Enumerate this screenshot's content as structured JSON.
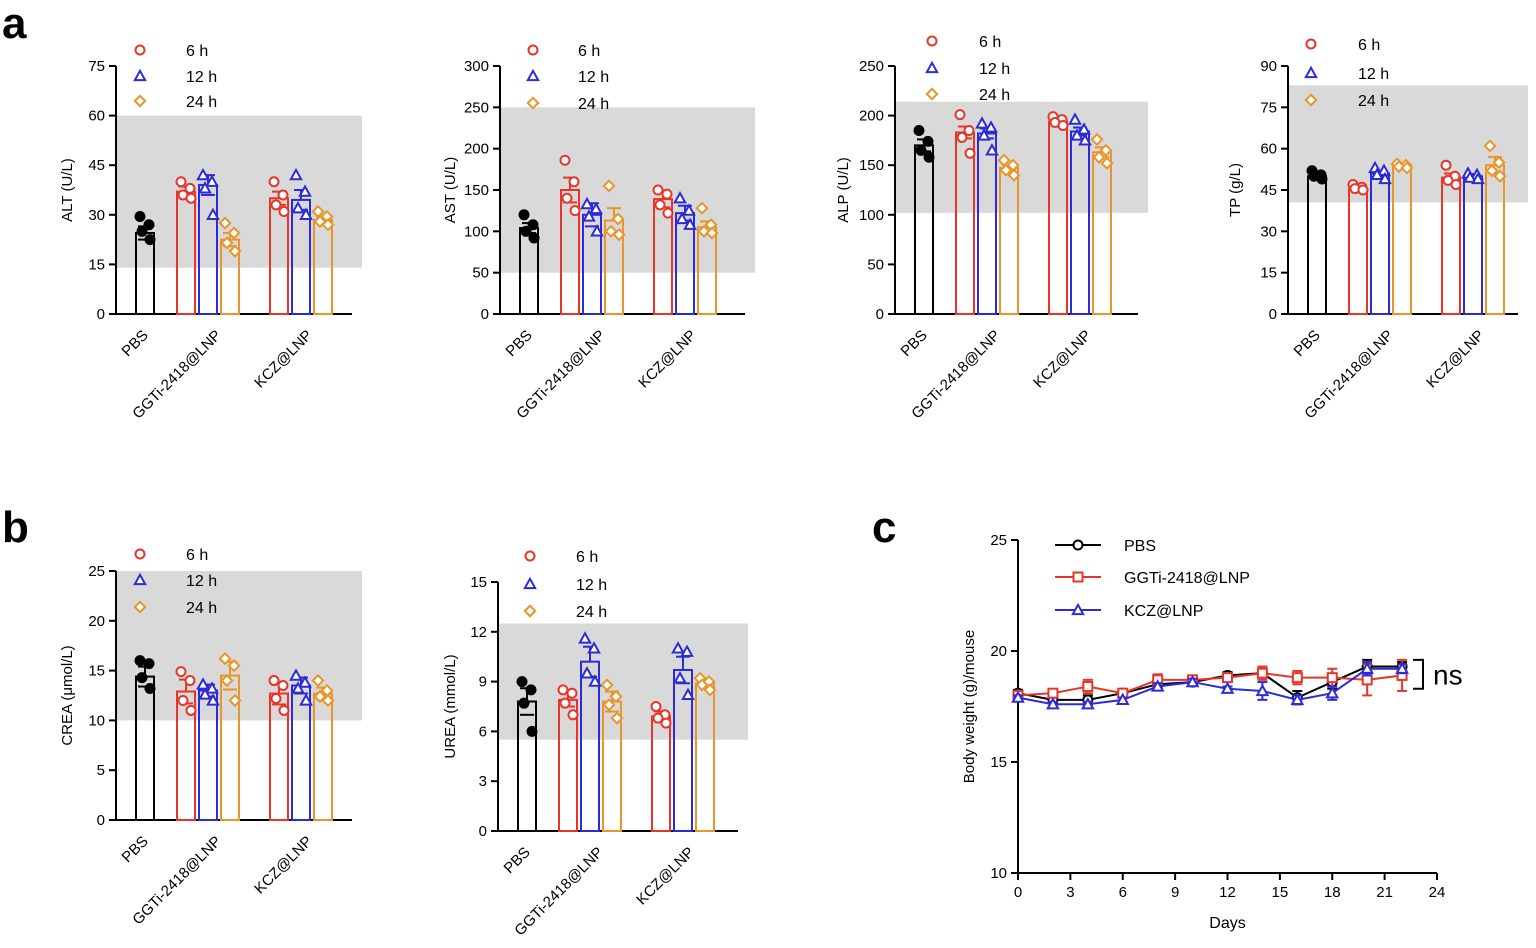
{
  "panel_labels": {
    "a": "a",
    "b": "b",
    "c": "c"
  },
  "colors": {
    "pbs": "#000000",
    "h6": "#e8352a",
    "h12": "#2b2bd9",
    "h24": "#e8952a",
    "reference_band": "#d9d9d9",
    "ggti_line": "#e8352a",
    "kcz_line": "#2b2bd9"
  },
  "chart_data": [
    {
      "id": "alt",
      "panel": "a",
      "type": "bar",
      "ylabel": "ALT (U/L)",
      "ylim": [
        0,
        75
      ],
      "yticks": [
        0,
        15,
        30,
        45,
        60,
        75
      ],
      "reference_range": [
        14,
        60
      ],
      "categories": [
        "PBS",
        "GGTi-2418@LNP",
        "KCZ@LNP"
      ],
      "legend": [
        "6 h",
        "12 h",
        "24 h"
      ],
      "pbs": {
        "mean": 24.5,
        "sem": 2,
        "points": [
          29.5,
          27,
          25,
          22.5
        ]
      },
      "groups": [
        {
          "category": "GGTi-2418@LNP",
          "bars": [
            {
              "series": "6 h",
              "mean": 37,
              "sem": 1.5,
              "points": [
                40,
                38,
                36,
                35
              ]
            },
            {
              "series": "12 h",
              "mean": 39,
              "sem": 3,
              "points": [
                42,
                40,
                38,
                30
              ]
            },
            {
              "series": "24 h",
              "mean": 22.5,
              "sem": 2,
              "points": [
                27.5,
                24.5,
                21.5,
                19
              ]
            }
          ]
        },
        {
          "category": "KCZ@LNP",
          "bars": [
            {
              "series": "6 h",
              "mean": 35,
              "sem": 2,
              "points": [
                40,
                36,
                33,
                31
              ]
            },
            {
              "series": "12 h",
              "mean": 34.5,
              "sem": 3,
              "points": [
                42,
                37,
                32,
                30
              ]
            },
            {
              "series": "24 h",
              "mean": 28.5,
              "sem": 1,
              "points": [
                31,
                29.5,
                28,
                27
              ]
            }
          ]
        }
      ]
    },
    {
      "id": "ast",
      "panel": "a",
      "type": "bar",
      "ylabel": "AST (U/L)",
      "ylim": [
        0,
        300
      ],
      "yticks": [
        0,
        50,
        100,
        150,
        200,
        250,
        300
      ],
      "reference_range": [
        50,
        250
      ],
      "categories": [
        "PBS",
        "GGTi-2418@LNP",
        "KCZ@LNP"
      ],
      "legend": [
        "6 h",
        "12 h",
        "24 h"
      ],
      "pbs": {
        "mean": 104,
        "sem": 6,
        "points": [
          120,
          108,
          100,
          92
        ]
      },
      "groups": [
        {
          "category": "GGTi-2418@LNP",
          "bars": [
            {
              "series": "6 h",
              "mean": 150,
              "sem": 15,
              "points": [
                186,
                160,
                140,
                125
              ]
            },
            {
              "series": "12 h",
              "mean": 120,
              "sem": 14,
              "points": [
                133,
                127,
                118,
                100
              ]
            },
            {
              "series": "24 h",
              "mean": 113,
              "sem": 15,
              "points": [
                155,
                115,
                100,
                96
              ]
            }
          ]
        },
        {
          "category": "KCZ@LNP",
          "bars": [
            {
              "series": "6 h",
              "mean": 139,
              "sem": 10,
              "points": [
                150,
                145,
                132,
                122
              ]
            },
            {
              "series": "12 h",
              "mean": 122,
              "sem": 9,
              "points": [
                140,
                125,
                115,
                108
              ]
            },
            {
              "series": "24 h",
              "mean": 105,
              "sem": 7,
              "points": [
                128,
                108,
                100,
                98
              ]
            }
          ]
        }
      ]
    },
    {
      "id": "alp",
      "panel": "a",
      "type": "bar",
      "ylabel": "ALP (U/L)",
      "ylim": [
        0,
        250
      ],
      "yticks": [
        0,
        50,
        100,
        150,
        200,
        250
      ],
      "reference_range": [
        102,
        214
      ],
      "categories": [
        "PBS",
        "GGTi-2418@LNP",
        "KCZ@LNP"
      ],
      "legend": [
        "6 h",
        "12 h",
        "24 h"
      ],
      "pbs": {
        "mean": 170,
        "sem": 6,
        "points": [
          185,
          174,
          165,
          158
        ]
      },
      "groups": [
        {
          "category": "GGTi-2418@LNP",
          "bars": [
            {
              "series": "6 h",
              "mean": 183,
              "sem": 6,
              "points": [
                201,
                185,
                178,
                162
              ]
            },
            {
              "series": "12 h",
              "mean": 182,
              "sem": 5,
              "points": [
                192,
                188,
                180,
                165
              ]
            },
            {
              "series": "24 h",
              "mean": 147,
              "sem": 3,
              "points": [
                155,
                150,
                145,
                140
              ]
            }
          ]
        },
        {
          "category": "KCZ@LNP",
          "bars": [
            {
              "series": "6 h",
              "mean": 194,
              "sem": 2,
              "points": [
                199,
                196,
                193,
                190
              ]
            },
            {
              "series": "12 h",
              "mean": 184,
              "sem": 4,
              "points": [
                196,
                186,
                180,
                175
              ]
            },
            {
              "series": "24 h",
              "mean": 163,
              "sem": 5,
              "points": [
                176,
                165,
                158,
                152
              ]
            }
          ]
        }
      ]
    },
    {
      "id": "tp",
      "panel": "a",
      "type": "bar",
      "ylabel": "TP (g/L)",
      "ylim": [
        0,
        90
      ],
      "yticks": [
        0,
        15,
        30,
        45,
        60,
        75,
        90
      ],
      "reference_range": [
        40.5,
        83
      ],
      "categories": [
        "PBS",
        "GGTi-2418@LNP",
        "KCZ@LNP"
      ],
      "legend": [
        "6 h",
        "12 h",
        "24 h"
      ],
      "pbs": {
        "mean": 50,
        "sem": 1,
        "points": [
          52,
          50.5,
          50,
          49
        ]
      },
      "groups": [
        {
          "category": "GGTi-2418@LNP",
          "bars": [
            {
              "series": "6 h",
              "mean": 45.5,
              "sem": 0.8,
              "points": [
                47,
                46,
                45.5,
                45
              ]
            },
            {
              "series": "12 h",
              "mean": 51,
              "sem": 1,
              "points": [
                53,
                52,
                50.5,
                49
              ]
            },
            {
              "series": "24 h",
              "mean": 53.5,
              "sem": 0.6,
              "points": [
                54.5,
                54,
                53.5,
                53
              ]
            }
          ]
        },
        {
          "category": "KCZ@LNP",
          "bars": [
            {
              "series": "6 h",
              "mean": 49.5,
              "sem": 1.5,
              "points": [
                54,
                50,
                48.5,
                47
              ]
            },
            {
              "series": "12 h",
              "mean": 50,
              "sem": 0.8,
              "points": [
                51,
                50.5,
                49.5,
                49
              ]
            },
            {
              "series": "24 h",
              "mean": 54,
              "sem": 3,
              "points": [
                61,
                55,
                52,
                50
              ]
            }
          ]
        }
      ]
    },
    {
      "id": "crea",
      "panel": "b",
      "type": "bar",
      "ylabel": "CREA (μmol/L)",
      "ylim": [
        0,
        25
      ],
      "yticks": [
        0,
        5,
        10,
        15,
        20,
        25
      ],
      "reference_range": [
        10,
        25
      ],
      "categories": [
        "PBS",
        "GGTi-2418@LNP",
        "KCZ@LNP"
      ],
      "legend": [
        "6 h",
        "12 h",
        "24 h"
      ],
      "pbs": {
        "mean": 14.4,
        "sem": 1,
        "points": [
          16,
          15.7,
          14.3,
          13.2
        ]
      },
      "groups": [
        {
          "category": "GGTi-2418@LNP",
          "bars": [
            {
              "series": "6 h",
              "mean": 12.9,
              "sem": 1.2,
              "points": [
                14.9,
                14,
                12,
                11
              ]
            },
            {
              "series": "12 h",
              "mean": 13,
              "sem": 0.6,
              "points": [
                13.6,
                13.2,
                12.6,
                12
              ]
            },
            {
              "series": "24 h",
              "mean": 14.5,
              "sem": 1.4,
              "points": [
                16.2,
                15.5,
                14,
                12
              ]
            }
          ]
        },
        {
          "category": "KCZ@LNP",
          "bars": [
            {
              "series": "6 h",
              "mean": 12.7,
              "sem": 1.1,
              "points": [
                14,
                13.5,
                12.2,
                11
              ]
            },
            {
              "series": "12 h",
              "mean": 13.5,
              "sem": 0.8,
              "points": [
                14.5,
                13.8,
                13.2,
                12
              ]
            },
            {
              "series": "24 h",
              "mean": 12.7,
              "sem": 0.6,
              "points": [
                14,
                13,
                12.4,
                12
              ]
            }
          ]
        }
      ]
    },
    {
      "id": "urea",
      "panel": "b",
      "type": "bar",
      "ylabel": "UREA (mmol/L)",
      "ylim": [
        0,
        15
      ],
      "yticks": [
        0,
        3,
        6,
        9,
        12,
        15
      ],
      "reference_range": [
        5.5,
        12.5
      ],
      "categories": [
        "PBS",
        "GGTi-2418@LNP",
        "KCZ@LNP"
      ],
      "legend": [
        "6 h",
        "12 h",
        "24 h"
      ],
      "pbs": {
        "mean": 7.8,
        "sem": 0.8,
        "points": [
          9,
          8.5,
          7.7,
          6
        ]
      },
      "groups": [
        {
          "category": "GGTi-2418@LNP",
          "bars": [
            {
              "series": "6 h",
              "mean": 7.9,
              "sem": 0.4,
              "points": [
                8.5,
                8.3,
                7.7,
                7
              ]
            },
            {
              "series": "12 h",
              "mean": 10.2,
              "sem": 0.9,
              "points": [
                11.6,
                11,
                9.5,
                9
              ]
            },
            {
              "series": "24 h",
              "mean": 7.8,
              "sem": 0.6,
              "points": [
                8.8,
                8.1,
                7.6,
                6.8
              ]
            }
          ]
        },
        {
          "category": "KCZ@LNP",
          "bars": [
            {
              "series": "6 h",
              "mean": 6.9,
              "sem": 0.3,
              "points": [
                7.5,
                7,
                6.8,
                6.5
              ]
            },
            {
              "series": "12 h",
              "mean": 9.7,
              "sem": 0.8,
              "points": [
                11,
                10.8,
                9.2,
                8.2
              ]
            },
            {
              "series": "24 h",
              "mean": 8.9,
              "sem": 0.2,
              "points": [
                9.2,
                9,
                8.8,
                8.5
              ]
            }
          ]
        }
      ]
    },
    {
      "id": "bw",
      "panel": "c",
      "type": "line",
      "xlabel": "Days",
      "ylabel": "Body weight (g)/mouse",
      "xlim": [
        0,
        24
      ],
      "xticks": [
        0,
        3,
        6,
        9,
        12,
        15,
        18,
        21,
        24
      ],
      "ylim": [
        10,
        25
      ],
      "yticks": [
        10,
        15,
        20,
        25
      ],
      "x": [
        0,
        2,
        4,
        6,
        8,
        10,
        12,
        14,
        16,
        18,
        20,
        22
      ],
      "series": [
        {
          "name": "PBS",
          "marker": "circle",
          "values": [
            18.1,
            17.8,
            17.8,
            18.1,
            18.5,
            18.6,
            18.9,
            19.0,
            17.9,
            18.6,
            19.3,
            19.3
          ],
          "errors": [
            0.15,
            0.15,
            0.2,
            0.15,
            0.15,
            0.15,
            0.15,
            0.2,
            0.3,
            0.3,
            0.3,
            0.2
          ]
        },
        {
          "name": "GGTi-2418@LNP",
          "marker": "square",
          "values": [
            18.0,
            18.1,
            18.4,
            18.1,
            18.7,
            18.7,
            18.8,
            19.0,
            18.8,
            18.8,
            18.7,
            18.9
          ],
          "errors": [
            0.15,
            0.15,
            0.3,
            0.15,
            0.25,
            0.2,
            0.15,
            0.3,
            0.3,
            0.4,
            0.7,
            0.7
          ]
        },
        {
          "name": "KCZ@LNP",
          "marker": "triangle",
          "values": [
            17.9,
            17.6,
            17.6,
            17.8,
            18.4,
            18.6,
            18.3,
            18.2,
            17.8,
            18.1,
            19.2,
            19.2
          ],
          "errors": [
            0.1,
            0.1,
            0.1,
            0.1,
            0.15,
            0.15,
            0.1,
            0.4,
            0.2,
            0.3,
            0.3,
            0.2
          ]
        }
      ],
      "annotation": "ns"
    }
  ]
}
